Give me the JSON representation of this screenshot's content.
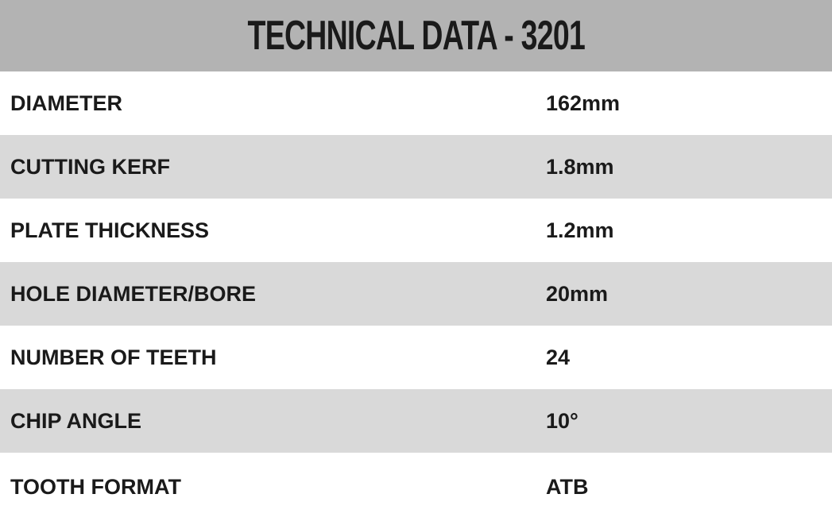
{
  "title": "TECHNICAL DATA - 3201",
  "colors": {
    "header_bg": "#b3b3b3",
    "stripe_bg": "#d9d9d9",
    "text": "#1a1a1a"
  },
  "rows": [
    {
      "label": "DIAMETER",
      "value": "162mm"
    },
    {
      "label": "CUTTING KERF",
      "value": "1.8mm"
    },
    {
      "label": "PLATE THICKNESS",
      "value": "1.2mm"
    },
    {
      "label": "HOLE DIAMETER/BORE",
      "value": "20mm"
    },
    {
      "label": "NUMBER OF TEETH",
      "value": "24"
    },
    {
      "label": "CHIP ANGLE",
      "value": "10°"
    },
    {
      "label": "TOOTH FORMAT",
      "value": "ATB"
    }
  ]
}
